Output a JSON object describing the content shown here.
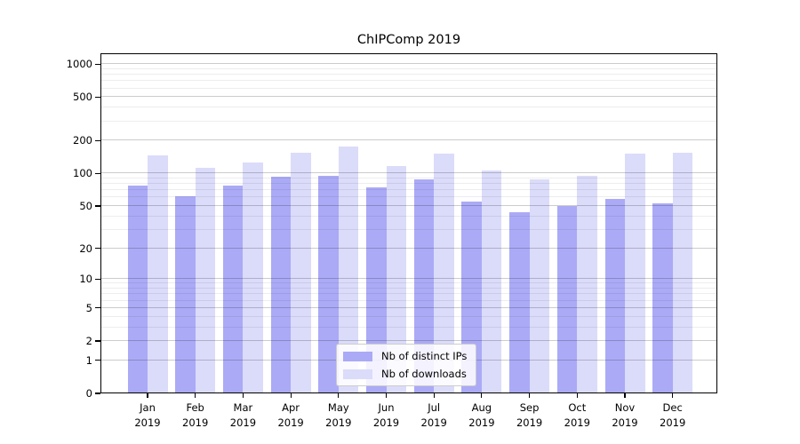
{
  "title": "ChIPComp 2019",
  "legend": {
    "items": [
      {
        "label": "Nb of distinct IPs",
        "color": "#abaaf6"
      },
      {
        "label": "Nb of downloads",
        "color": "#dbdbfa"
      }
    ]
  },
  "colors": {
    "bar_distinct_ips": "#abaaf6",
    "bar_downloads": "#dbdbfa",
    "grid_major": "#cccccc",
    "grid_minor": "#ededed",
    "axis": "#000000",
    "background": "#ffffff"
  },
  "chart_data": {
    "type": "bar",
    "title": "ChIPComp 2019",
    "xlabel": "",
    "ylabel": "",
    "categories": [
      "Jan 2019",
      "Feb 2019",
      "Mar 2019",
      "Apr 2019",
      "May 2019",
      "Jun 2019",
      "Jul 2019",
      "Aug 2019",
      "Sep 2019",
      "Oct 2019",
      "Nov 2019",
      "Dec 2019"
    ],
    "series": [
      {
        "name": "Nb of distinct IPs",
        "color": "#abaaf6",
        "values": [
          77,
          62,
          77,
          94,
          95,
          74,
          88,
          55,
          44,
          50,
          58,
          53
        ]
      },
      {
        "name": "Nb of downloads",
        "color": "#dbdbfa",
        "values": [
          147,
          113,
          127,
          154,
          178,
          116,
          153,
          106,
          88,
          96,
          152,
          154
        ]
      }
    ],
    "yscale": "log1p",
    "y_ticks": [
      1000,
      500,
      200,
      100,
      50,
      20,
      10,
      5,
      2,
      1,
      0
    ],
    "y_minor_ticks": [
      3,
      4,
      6,
      7,
      8,
      9,
      30,
      40,
      60,
      70,
      80,
      90,
      300,
      400,
      600,
      700,
      800,
      900
    ],
    "ylim": [
      0,
      1258
    ],
    "grid": true,
    "grid_on_top": true,
    "legend_position": "lower center"
  }
}
